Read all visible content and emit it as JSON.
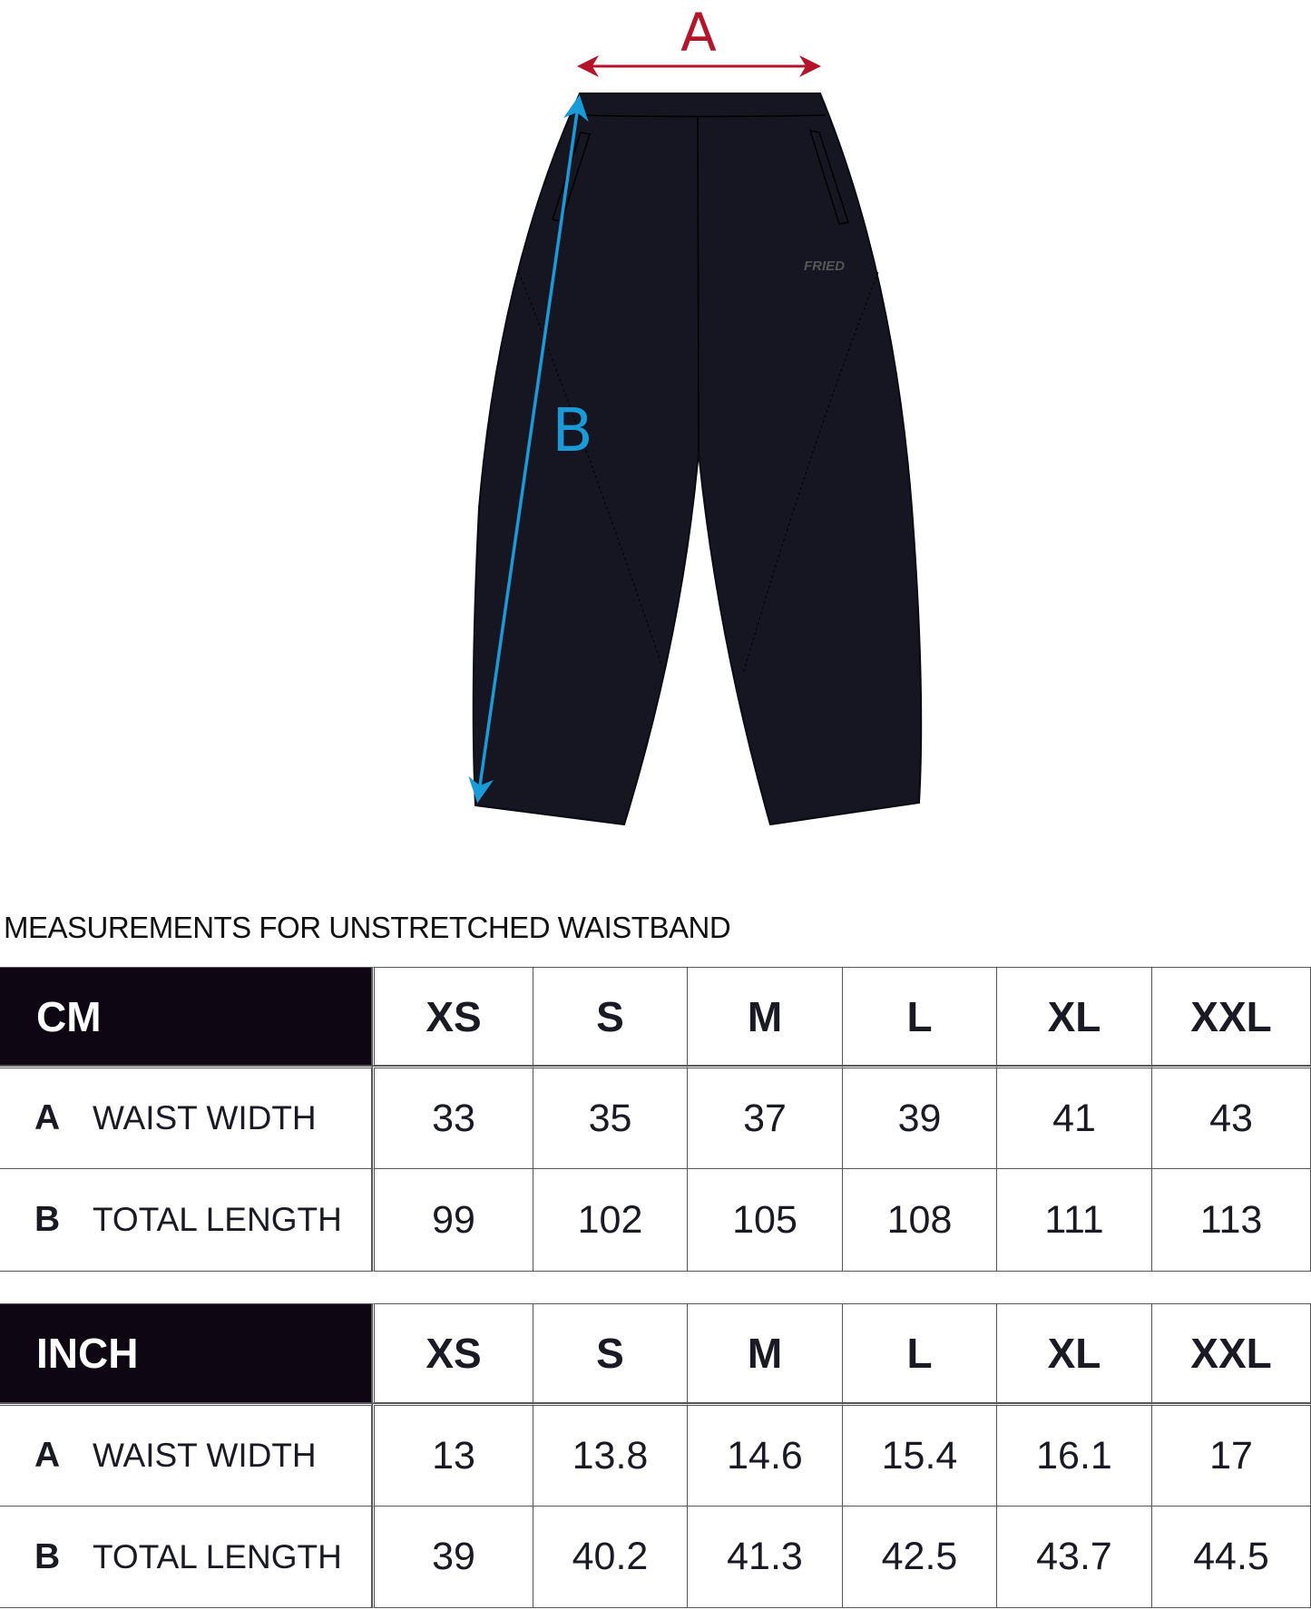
{
  "diagram": {
    "label_a": "A",
    "label_b": "B",
    "brand_mark": "FRIED",
    "colors": {
      "arrow_a": "#b5152b",
      "arrow_b": "#1a9ad6",
      "garment": "#161622"
    }
  },
  "title": "MEASUREMENTS FOR UNSTRETCHED WAISTBAND",
  "sizes": [
    "XS",
    "S",
    "M",
    "L",
    "XL",
    "XXL"
  ],
  "tables": [
    {
      "unit": "CM",
      "rows": [
        {
          "letter": "A",
          "label": "WAIST WIDTH",
          "values": [
            "33",
            "35",
            "37",
            "39",
            "41",
            "43"
          ]
        },
        {
          "letter": "B",
          "label": "TOTAL LENGTH",
          "values": [
            "99",
            "102",
            "105",
            "108",
            "111",
            "113"
          ]
        }
      ]
    },
    {
      "unit": "INCH",
      "rows": [
        {
          "letter": "A",
          "label": "WAIST WIDTH",
          "values": [
            "13",
            "13.8",
            "14.6",
            "15.4",
            "16.1",
            "17"
          ]
        },
        {
          "letter": "B",
          "label": "TOTAL LENGTH",
          "values": [
            "39",
            "40.2",
            "41.3",
            "42.5",
            "43.7",
            "44.5"
          ]
        }
      ]
    }
  ]
}
